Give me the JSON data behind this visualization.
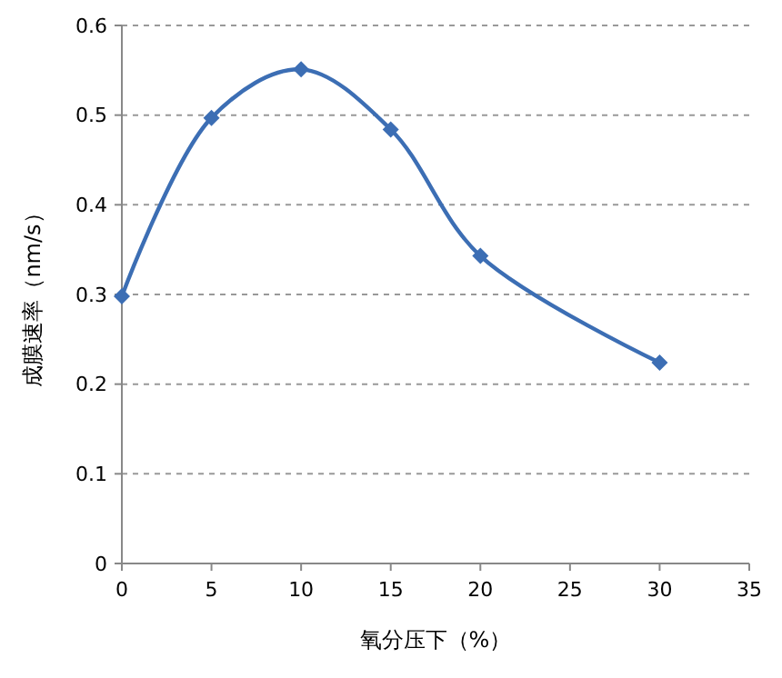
{
  "chart_data": {
    "type": "line",
    "xlabel": "氧分压下（%）",
    "ylabel": "成膜速率（nm/s）",
    "x": [
      0,
      5,
      10,
      15,
      20,
      30
    ],
    "series": [
      {
        "color": "#3c6eb4",
        "values": [
          0.298,
          0.497,
          0.551,
          0.484,
          0.343,
          0.224
        ]
      }
    ],
    "xlim": [
      0,
      35
    ],
    "xticks": [
      0,
      5,
      10,
      15,
      20,
      25,
      30,
      35
    ],
    "ylim": [
      0,
      0.6
    ],
    "yticks": [
      0,
      0.1,
      0.2,
      0.3,
      0.4,
      0.5,
      0.6
    ],
    "grid": "y",
    "marker": "diamond",
    "line_style": "solid"
  }
}
